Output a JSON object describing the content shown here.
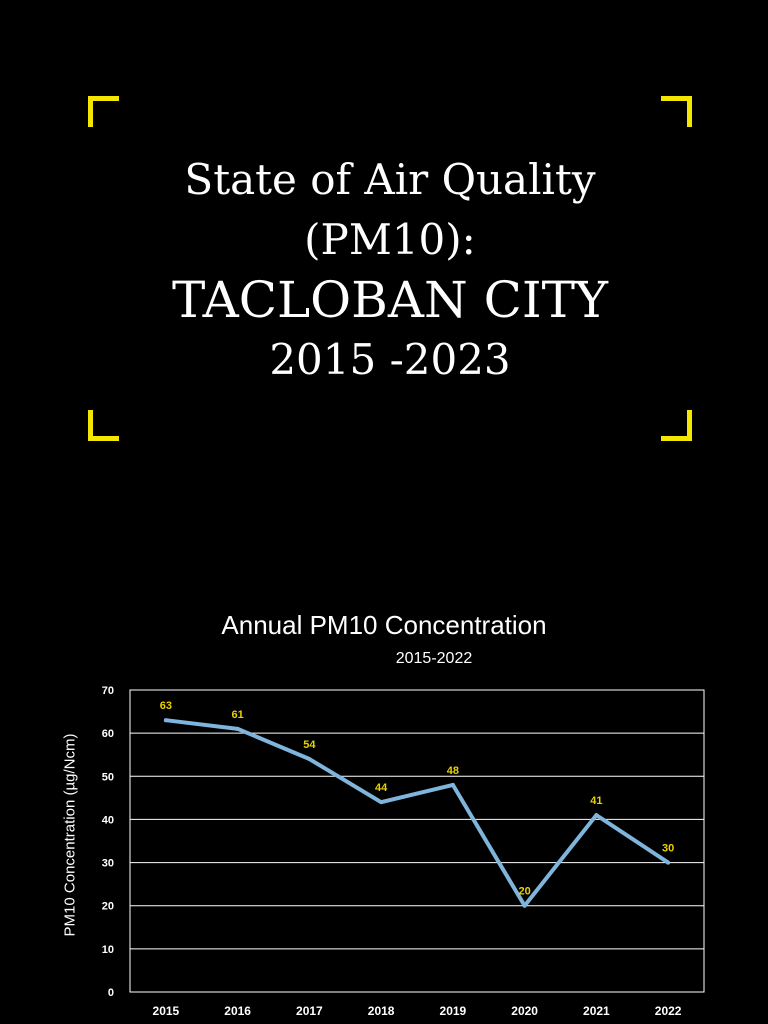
{
  "heading": {
    "line1": "State of Air Quality",
    "line2": "(PM10):",
    "line3": "TACLOBAN CITY",
    "line4": "2015 -2023"
  },
  "colors": {
    "background": "#000000",
    "accent": "#f5e600",
    "line": "#7fb5dc",
    "data_label": "#e8d200"
  },
  "chart_data": {
    "type": "line",
    "title": "Annual PM10 Concentration",
    "subtitle": "2015-2022",
    "xlabel": "",
    "ylabel": "PM10 Concentration (µg/Ncm)",
    "categories": [
      "2015",
      "2016",
      "2017",
      "2018",
      "2019",
      "2020",
      "2021",
      "2022"
    ],
    "series": [
      {
        "values": [
          63,
          61,
          54,
          44,
          48,
          20,
          41,
          30
        ]
      }
    ],
    "ylim": [
      0,
      70
    ],
    "yticks": [
      0,
      10,
      20,
      30,
      40,
      50,
      60,
      70
    ],
    "grid": true,
    "data_labels": true,
    "legend": "none"
  }
}
